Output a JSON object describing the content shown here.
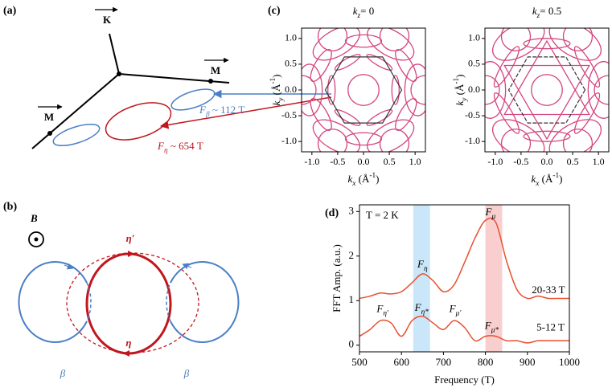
{
  "panel_a": {
    "label": "(a)",
    "K": "K",
    "M1": "M",
    "M2": "M",
    "F_beta": {
      "main": "F",
      "sub": "β",
      "rest": " ~ 112 T"
    },
    "F_eta": {
      "main": "F",
      "sub": "η",
      "rest": " ~ 654 T"
    }
  },
  "panel_b": {
    "label": "(b)",
    "B": "B",
    "eta_prime": "η′",
    "eta": "η",
    "beta_left": "β",
    "beta_right": "β"
  },
  "panel_c": {
    "label": "(c)"
  },
  "chart_data": [
    {
      "type": "contour",
      "kz": 0,
      "title": {
        "main": "k",
        "sub": "z",
        "rest": "= 0"
      },
      "xlabel": {
        "main": "k",
        "sub": "x",
        "rest": " (Å",
        "sup": "-1",
        "end": ")"
      },
      "ylabel": {
        "main": "k",
        "sub": "y",
        "rest": " (Å",
        "sup": "-1",
        "end": ")"
      },
      "xlim": [
        -1.2,
        1.2
      ],
      "ylim": [
        -1.2,
        1.2
      ],
      "xticks": [
        {
          "value": -1,
          "label": "-1.0"
        },
        {
          "value": -0.5,
          "label": "-0.5"
        },
        {
          "value": 0,
          "label": "0.0"
        },
        {
          "value": 0.5,
          "label": "0.5"
        },
        {
          "value": 1,
          "label": "1.0"
        }
      ],
      "yticks": [
        {
          "value": -1,
          "label": "-1.0"
        },
        {
          "value": -0.5,
          "label": "-0.5"
        },
        {
          "value": 0,
          "label": "0.0"
        },
        {
          "value": 0.5,
          "label": "0.5"
        },
        {
          "value": 1,
          "label": "1.0"
        }
      ],
      "color": "#d4457f"
    },
    {
      "type": "contour",
      "kz": 0.5,
      "title": {
        "main": "k",
        "sub": "z",
        "rest": "= 0.5"
      },
      "xlabel": {
        "main": "k",
        "sub": "x",
        "rest": " (Å",
        "sup": "-1",
        "end": ")"
      },
      "ylabel": {
        "main": "k",
        "sub": "y",
        "rest": " (Å",
        "sup": "-1",
        "end": ")"
      },
      "xlim": [
        -1.2,
        1.2
      ],
      "ylim": [
        -1.2,
        1.2
      ],
      "xticks": [
        {
          "value": -1,
          "label": "-1.0"
        },
        {
          "value": -0.5,
          "label": "-0.5"
        },
        {
          "value": 0,
          "label": "0.0"
        },
        {
          "value": 0.5,
          "label": "0.5"
        },
        {
          "value": 1,
          "label": "1.0"
        }
      ],
      "yticks": [
        {
          "value": -1,
          "label": "-1.0"
        },
        {
          "value": -0.5,
          "label": "-0.5"
        },
        {
          "value": 0,
          "label": "0.0"
        },
        {
          "value": 0.5,
          "label": "0.5"
        },
        {
          "value": 1,
          "label": "1.0"
        }
      ],
      "color": "#d4457f"
    },
    {
      "type": "line",
      "panel_label": "(d)",
      "xlabel": "Frequency (T)",
      "ylabel": "FFT Amp. (a.u.)",
      "note": "T = 2 K",
      "x": [
        500,
        525,
        550,
        575,
        600,
        625,
        650,
        675,
        700,
        725,
        750,
        775,
        800,
        825,
        850,
        875,
        900,
        925,
        950,
        975,
        1000
      ],
      "series": [
        {
          "name": "20-33 T",
          "color": "#e8502f",
          "values": [
            1.05,
            1.1,
            1.17,
            1.15,
            1.2,
            1.4,
            1.6,
            1.45,
            1.2,
            1.35,
            1.85,
            2.4,
            2.8,
            2.75,
            1.9,
            1.25,
            1.05,
            1.1,
            1.05,
            1.05,
            1.05
          ]
        },
        {
          "name": "5-12 T",
          "color": "#e8502f",
          "values": [
            0.2,
            0.35,
            0.55,
            0.5,
            0.2,
            0.55,
            0.65,
            0.5,
            0.35,
            0.55,
            0.4,
            0.1,
            0.2,
            0.2,
            0.1,
            0.1,
            0.05,
            0.1,
            0.1,
            0.1,
            0.1
          ]
        }
      ],
      "highlights": [
        {
          "xlim": [
            628,
            668
          ],
          "color": "#bfe3f7"
        },
        {
          "xlim": [
            800,
            840
          ],
          "color": "#f7c6c6"
        }
      ],
      "annotations": [
        {
          "main": "F",
          "sub": "μ"
        },
        {
          "main": "F",
          "sub": "η"
        },
        {
          "main": "F",
          "sub": "η′"
        },
        {
          "main": "F",
          "sub": "η*"
        },
        {
          "main": "F",
          "sub": "μ′"
        },
        {
          "main": "F",
          "sub": "μ*"
        }
      ],
      "xlim": [
        500,
        1000
      ],
      "xticks": [
        500,
        600,
        700,
        800,
        900,
        1000
      ],
      "ylim": [
        -0.15,
        3.15
      ],
      "yticks": [
        0,
        1,
        2,
        3
      ]
    }
  ]
}
